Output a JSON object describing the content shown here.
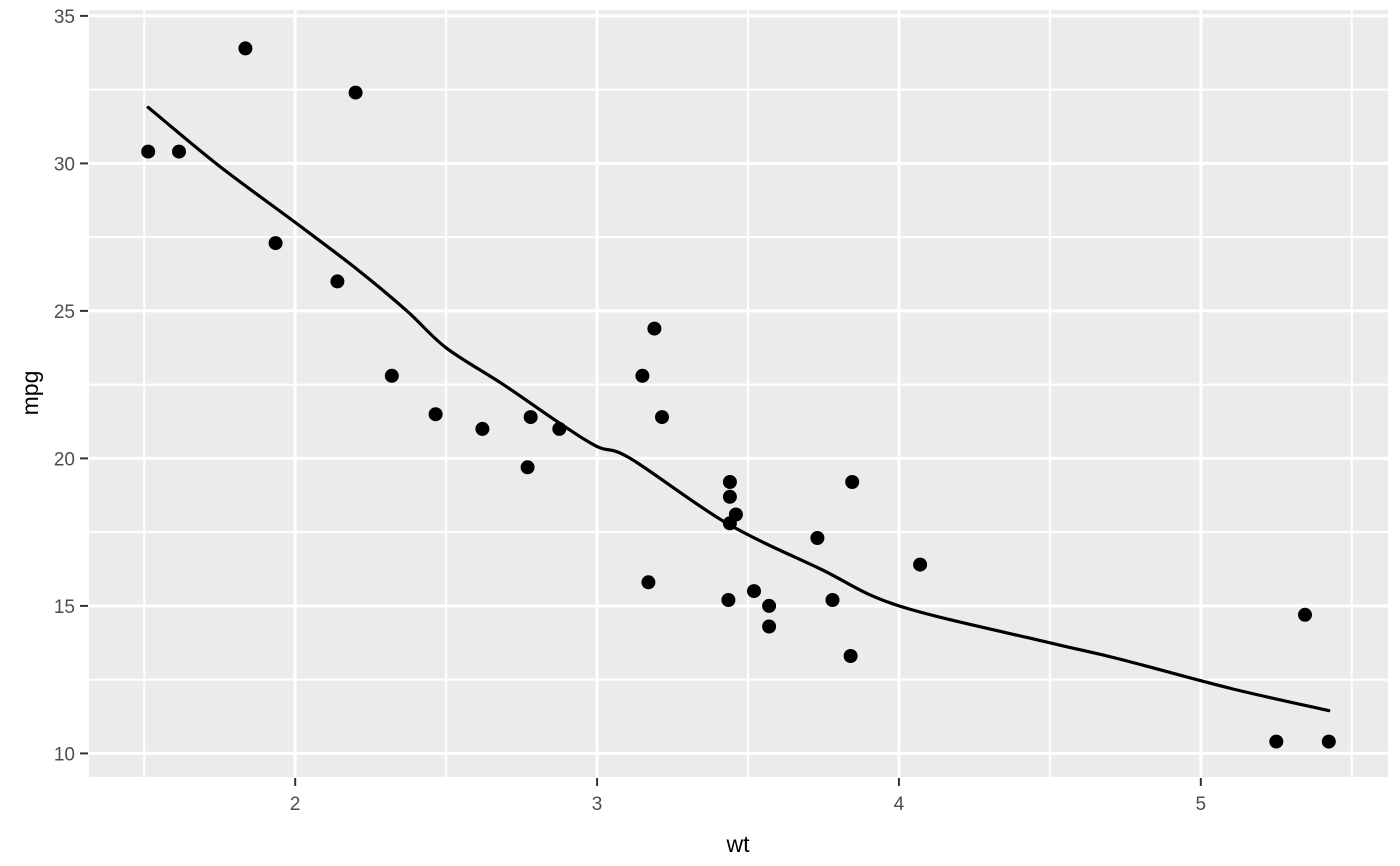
{
  "chart_data": {
    "type": "scatter",
    "title": "",
    "xlabel": "wt",
    "ylabel": "mpg",
    "x_ticks": [
      2,
      3,
      4,
      5
    ],
    "y_ticks": [
      10,
      15,
      20,
      25,
      30,
      35
    ],
    "x_minor": [
      1.5,
      2.5,
      3.5,
      4.5,
      5.5
    ],
    "y_minor": [
      12.5,
      17.5,
      22.5,
      27.5,
      32.5
    ],
    "xlim": [
      1.317,
      5.62
    ],
    "ylim": [
      9.2,
      35.2
    ],
    "grid": "major+minor",
    "legend": "none",
    "points": [
      [
        2.62,
        21.0
      ],
      [
        2.875,
        21.0
      ],
      [
        2.32,
        22.8
      ],
      [
        3.215,
        21.4
      ],
      [
        3.44,
        18.7
      ],
      [
        3.46,
        18.1
      ],
      [
        3.57,
        14.3
      ],
      [
        3.19,
        24.4
      ],
      [
        3.15,
        22.8
      ],
      [
        3.44,
        19.2
      ],
      [
        3.44,
        17.8
      ],
      [
        4.07,
        16.4
      ],
      [
        3.73,
        17.3
      ],
      [
        3.78,
        15.2
      ],
      [
        5.25,
        10.4
      ],
      [
        5.424,
        10.4
      ],
      [
        5.345,
        14.7
      ],
      [
        2.2,
        32.4
      ],
      [
        1.615,
        30.4
      ],
      [
        1.835,
        33.9
      ],
      [
        2.465,
        21.5
      ],
      [
        3.52,
        15.5
      ],
      [
        3.435,
        15.2
      ],
      [
        3.84,
        13.3
      ],
      [
        3.845,
        19.2
      ],
      [
        1.935,
        27.3
      ],
      [
        2.14,
        26.0
      ],
      [
        1.513,
        30.4
      ],
      [
        3.17,
        15.8
      ],
      [
        2.77,
        19.7
      ],
      [
        3.57,
        15.0
      ],
      [
        2.78,
        21.4
      ]
    ],
    "smooth_line": [
      [
        1.513,
        31.9
      ],
      [
        1.75,
        29.9
      ],
      [
        2.0,
        28.0
      ],
      [
        2.2,
        26.45
      ],
      [
        2.37,
        25.0
      ],
      [
        2.5,
        23.75
      ],
      [
        2.69,
        22.5
      ],
      [
        2.875,
        21.2
      ],
      [
        3.0,
        20.4
      ],
      [
        3.11,
        20.0
      ],
      [
        3.43,
        17.8
      ],
      [
        3.74,
        16.25
      ],
      [
        4.0,
        15.0
      ],
      [
        4.5,
        13.75
      ],
      [
        4.73,
        13.2
      ],
      [
        5.1,
        12.2
      ],
      [
        5.424,
        11.45
      ]
    ],
    "colors": {
      "panel_bg": "#EBEBEB",
      "grid": "#FFFFFF",
      "point": "#000000",
      "line": "#000000",
      "tick_mark": "#333333",
      "tick_label": "#4D4D4D",
      "axis_title": "#000000"
    }
  }
}
